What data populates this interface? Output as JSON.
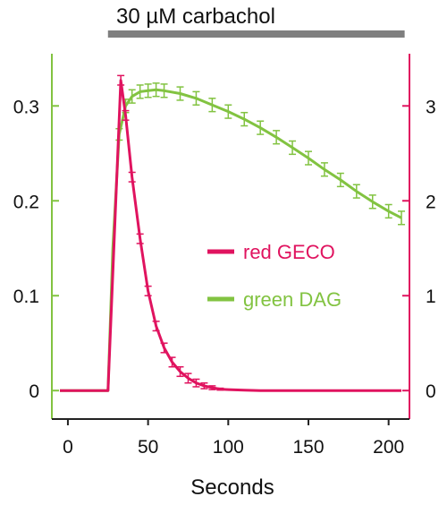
{
  "chart_data": {
    "type": "line",
    "annotation": {
      "text": "30 µM carbachol",
      "x_start": 25,
      "x_end": 210
    },
    "xlabel": "Seconds",
    "xlim": [
      -10,
      213
    ],
    "x_ticks": [
      "0",
      "50",
      "100",
      "150",
      "200"
    ],
    "left_axis": {
      "color": "#82c341",
      "ylim": [
        -0.03,
        0.355
      ],
      "ticks": [
        "0",
        "0.1",
        "0.2",
        "0.3"
      ]
    },
    "right_axis": {
      "color": "#e0135f",
      "ylim": [
        -0.3,
        3.55
      ],
      "ticks": [
        "0",
        "1",
        "2",
        "3"
      ]
    },
    "series": [
      {
        "name": "red GECO",
        "axis": "right",
        "color": "#e0135f",
        "x": [
          -5,
          25,
          33,
          36,
          40,
          45,
          50,
          55,
          60,
          65,
          70,
          75,
          80,
          85,
          90,
          95,
          100,
          110,
          120,
          140,
          160,
          180,
          200,
          208
        ],
        "y": [
          0,
          0,
          3.27,
          2.9,
          2.25,
          1.6,
          1.05,
          0.68,
          0.45,
          0.3,
          0.2,
          0.13,
          0.08,
          0.05,
          0.03,
          0.015,
          0.01,
          0.005,
          0,
          0,
          0,
          0,
          0,
          0
        ],
        "err": [
          0,
          0,
          0.05,
          0.05,
          0.05,
          0.05,
          0.05,
          0.05,
          0.05,
          0.05,
          0.05,
          0.05,
          0.04,
          0.03,
          0.02,
          0.01,
          0,
          0,
          0,
          0,
          0,
          0,
          0,
          0
        ]
      },
      {
        "name": "green DAG",
        "axis": "left",
        "color": "#82c341",
        "x": [
          -5,
          25,
          28,
          32,
          36,
          40,
          45,
          50,
          55,
          60,
          70,
          80,
          90,
          100,
          110,
          120,
          130,
          140,
          150,
          160,
          170,
          180,
          190,
          200,
          208
        ],
        "y": [
          0,
          0,
          0.15,
          0.27,
          0.3,
          0.31,
          0.315,
          0.316,
          0.317,
          0.316,
          0.313,
          0.308,
          0.301,
          0.294,
          0.286,
          0.277,
          0.267,
          0.256,
          0.245,
          0.233,
          0.222,
          0.21,
          0.199,
          0.189,
          0.182
        ],
        "err": [
          0,
          0,
          0,
          0.006,
          0.007,
          0.007,
          0.007,
          0.007,
          0.007,
          0.007,
          0.007,
          0.007,
          0.007,
          0.007,
          0.007,
          0.007,
          0.007,
          0.007,
          0.007,
          0.007,
          0.007,
          0.007,
          0.007,
          0.007,
          0.007
        ]
      }
    ],
    "legend": {
      "placement": "center-right"
    }
  }
}
